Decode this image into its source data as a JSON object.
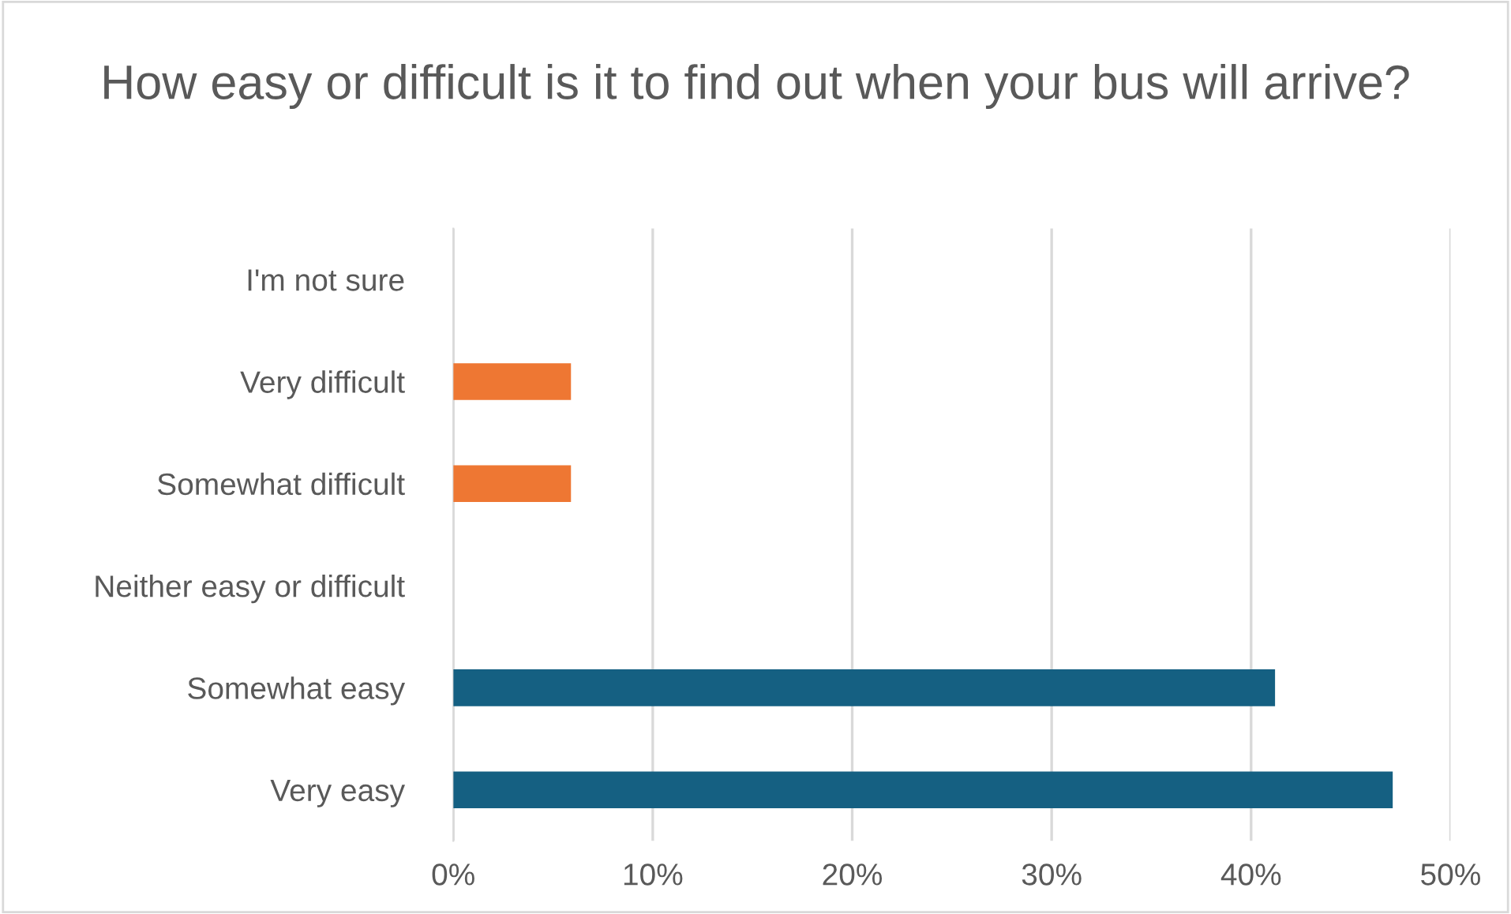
{
  "chart_data": {
    "type": "bar",
    "orientation": "horizontal",
    "title": "How easy or difficult is it to find out when your bus will arrive?",
    "categories": [
      "I'm not sure",
      "Very difficult",
      "Somewhat difficult",
      "Neither easy or difficult",
      "Somewhat easy",
      "Very easy"
    ],
    "values": [
      0,
      5.9,
      5.9,
      0,
      41.2,
      47.1
    ],
    "colors": [
      "#ee7733",
      "#ee7733",
      "#ee7733",
      "#156082",
      "#156082",
      "#156082"
    ],
    "xlim": [
      0,
      50
    ],
    "xticks": [
      {
        "value": 0,
        "label": "0%"
      },
      {
        "value": 10,
        "label": "10%"
      },
      {
        "value": 20,
        "label": "20%"
      },
      {
        "value": 30,
        "label": "30%"
      },
      {
        "value": 40,
        "label": "40%"
      },
      {
        "value": 50,
        "label": "50%"
      }
    ],
    "grid": "x"
  }
}
